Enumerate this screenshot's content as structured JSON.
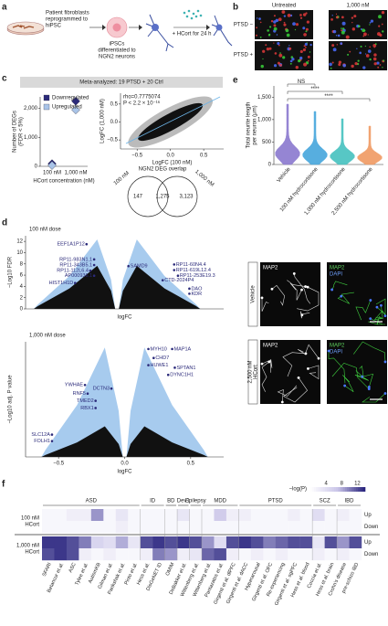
{
  "figure": {
    "panel_labels": [
      "a",
      "b",
      "c",
      "d",
      "e",
      "f"
    ]
  },
  "a": {
    "fibroblasts": [
      "Patient fibroblasts",
      "reprogrammed to",
      "hiPSC"
    ],
    "differentiation": [
      "iPSCs",
      "differentiated to",
      "NGN2 neurons"
    ],
    "treatment": "+ HCort for 24 h"
  },
  "b": {
    "columns": [
      "Untreated",
      "1,000 nM"
    ],
    "rows": [
      "PTSD −",
      "PTSD +"
    ]
  },
  "c": {
    "banner": "Meta-analyzed: 19 PTSD + 20 Ctrl"
  },
  "d": {
    "image_labels": [
      "MAP2",
      "MAP2",
      "DAPI"
    ],
    "image_rows": [
      [
        "Vehicle"
      ],
      [
        "2,500 nM",
        "HCort"
      ]
    ]
  },
  "chart_data": [
    {
      "type": "dot",
      "ylabel": [
        "Number of DEGs",
        "(FDR < 5%)"
      ],
      "xlabel": "HCort concentration (nM)",
      "categories": [
        "100 nM",
        "1,000 nM"
      ],
      "series": [
        {
          "name": "Downregulated",
          "color": "#2b2a7a",
          "values": [
            90,
            2250
          ]
        },
        {
          "name": "Upregulated",
          "color": "#a9c4e8",
          "values": [
            30,
            1950
          ]
        }
      ],
      "ylim": [
        0,
        2400
      ],
      "yticks": [
        0,
        {
          "value": 1000,
          "label": "1,000"
        },
        {
          "value": 2000,
          "label": "2,000"
        }
      ]
    },
    {
      "type": "scatter",
      "annotations": [
        "rho=0.7775074",
        "P < 2.2 × 10⁻¹⁶"
      ],
      "xlabel": "LogFC (100 nM)",
      "ylabel": "LogFC (1,000 nM)",
      "xlim": [
        -0.75,
        0.8
      ],
      "ylim": [
        -0.75,
        0.8
      ],
      "xticks": [
        {
          "value": -0.5,
          "label": "−0.5"
        },
        {
          "value": 0,
          "label": "0.0"
        },
        {
          "value": 0.5,
          "label": "0.5"
        }
      ],
      "yticks": [
        {
          "value": -0.5,
          "label": "−0.5"
        },
        {
          "value": 0,
          "label": "0.0"
        },
        {
          "value": 0.5,
          "label": "0.5"
        }
      ]
    },
    {
      "type": "venn",
      "title": "NGN2 DEG overlap",
      "sets": [
        "100 nM",
        "1,000 nM"
      ],
      "labels": [
        "147",
        "1,275",
        "3,123"
      ]
    },
    {
      "type": "volcano",
      "title": "100 nM dose",
      "ylabel": "−Log10 FDR",
      "xlabel": "logFC",
      "xlim": [
        -1.2,
        1.4
      ],
      "ylim": [
        0,
        13
      ],
      "yticks": [
        0,
        2,
        4,
        6,
        8,
        10,
        12
      ],
      "genes": [
        {
          "name": "EEF1A1P12",
          "x": -0.4,
          "y": 11.5
        },
        {
          "name": "RP11-983N1.1",
          "x": -0.3,
          "y": 8.8
        },
        {
          "name": "RP11-343B5.1",
          "x": -0.3,
          "y": 7.8
        },
        {
          "name": "SAMD9",
          "x": 0.15,
          "y": 7.6
        },
        {
          "name": "RP11-112L6.4",
          "x": -0.35,
          "y": 6.8
        },
        {
          "name": "AP000936.1",
          "x": -0.3,
          "y": 5.9
        },
        {
          "name": "HIST1H1D",
          "x": -0.55,
          "y": 4.6
        },
        {
          "name": "RP11-60N4.4",
          "x": 0.75,
          "y": 7.9
        },
        {
          "name": "RP11-619L12.4",
          "x": 0.75,
          "y": 6.9
        },
        {
          "name": "RP11-253E19.3",
          "x": 0.8,
          "y": 5.9
        },
        {
          "name": "CTD-2024P4",
          "x": 0.6,
          "y": 5.1
        },
        {
          "name": "DAO",
          "x": 0.95,
          "y": 3.6
        },
        {
          "name": "KDR",
          "x": 0.95,
          "y": 2.7
        }
      ]
    },
    {
      "type": "volcano",
      "title": "1,000 nM dose",
      "ylabel": "−Log10 adj. P value",
      "xlabel": "logFC",
      "xlim": [
        -0.75,
        0.75
      ],
      "ylim": [
        0,
        32
      ],
      "xticks": [
        {
          "value": -0.5,
          "label": "−0.5"
        },
        {
          "value": 0,
          "label": "0.0"
        },
        {
          "value": 0.5,
          "label": "0.5"
        }
      ],
      "genes": [
        {
          "name": "MYH10",
          "x": 0.18,
          "y": 30
        },
        {
          "name": "MAP1A",
          "x": 0.36,
          "y": 30
        },
        {
          "name": "CHD7",
          "x": 0.22,
          "y": 27.5
        },
        {
          "name": "HUWE1",
          "x": 0.18,
          "y": 25.5
        },
        {
          "name": "SPTAN1",
          "x": 0.38,
          "y": 24.8
        },
        {
          "name": "DYNC1H1",
          "x": 0.33,
          "y": 22.8
        },
        {
          "name": "YWHAE",
          "x": -0.3,
          "y": 20
        },
        {
          "name": "DCTN3",
          "x": -0.1,
          "y": 19
        },
        {
          "name": "RNF5",
          "x": -0.28,
          "y": 17.6
        },
        {
          "name": "TMED2",
          "x": -0.22,
          "y": 15.6
        },
        {
          "name": "RBX1",
          "x": -0.22,
          "y": 13.6
        },
        {
          "name": "SLC12A",
          "x": -0.55,
          "y": 6.2
        },
        {
          "name": "FOLH1",
          "x": -0.55,
          "y": 4.4
        }
      ]
    },
    {
      "type": "violin",
      "ylabel": [
        "Total neurite length",
        "per neuron (μm)"
      ],
      "categories": [
        "Vehicle",
        "100 nM hydrocortisone",
        "1,000 nM hydrocortisone",
        "2,500 nM hydrocortisone"
      ],
      "colors": [
        "#8a78cf",
        "#45a6dc",
        "#45c1bf",
        "#f09a62"
      ],
      "ylim": [
        0,
        1750
      ],
      "yticks": [
        0,
        500,
        {
          "value": 1000,
          "label": "1,000"
        },
        {
          "value": 1500,
          "label": "1,500"
        }
      ],
      "annotations": [
        "NS",
        "****",
        "****"
      ]
    },
    {
      "type": "heatmap",
      "legend_title": "−log(P)",
      "clim": [
        0,
        14
      ],
      "colorbar_ticks": [
        4,
        8,
        12
      ],
      "groups": [
        {
          "name": "ASD",
          "span": 8
        },
        {
          "name": "ID",
          "span": 2
        },
        {
          "name": "BD",
          "span": 1
        },
        {
          "name": "Dev1",
          "span": 1
        },
        {
          "name": "Epilepsy",
          "span": 1
        },
        {
          "name": "MDD",
          "span": 3
        },
        {
          "name": "PTSD",
          "span": 6
        },
        {
          "name": "SCZ",
          "span": 2
        },
        {
          "name": "IBD",
          "span": 2
        }
      ],
      "columns": [
        "SFARI",
        "Betancur et al.",
        "ASC",
        "Tylee et al.",
        "AutismKB",
        "Gilman et al.",
        "Parikshak et al.",
        "Pinto et al.",
        "Hess et al.",
        "DisGeNET ID",
        "OMIM",
        "DeBakker et al.",
        "Wittenberg et al.",
        "Wittenberg et al.",
        "Pantazatos et al.",
        "Girgenti et al. dlPFC",
        "Girgenti et al. dACC",
        "Hyperarousal",
        "Girgenti et al. OFC",
        "Re-experiencing",
        "Girgenti et al. sgPFC",
        "Hess et al. blood",
        "Coccia et al.",
        "Hess et al. brain",
        "Crohn's disease",
        "pre-schizo IBD"
      ],
      "row_groups": [
        [
          "100 nM",
          "HCort"
        ],
        [
          "1,000 nM",
          "HCort"
        ]
      ],
      "rows": [
        "Up",
        "Down",
        "Up",
        "Down"
      ],
      "values": [
        [
          1,
          1,
          2,
          2,
          9,
          1,
          3,
          1,
          1,
          1,
          1,
          3,
          1,
          1,
          6,
          2,
          2,
          1,
          1,
          1,
          2,
          1,
          4,
          1,
          2,
          1
        ],
        [
          1,
          1,
          1,
          1,
          1,
          1,
          2,
          1,
          1,
          1,
          1,
          1,
          1,
          1,
          1,
          1,
          1,
          1,
          1,
          1,
          1,
          1,
          1,
          1,
          1,
          1
        ],
        [
          13,
          13,
          12,
          10,
          5,
          4,
          8,
          3,
          12,
          13,
          12,
          13,
          12,
          9,
          4,
          12,
          13,
          12,
          10,
          11,
          12,
          12,
          3,
          12,
          9,
          12
        ],
        [
          12,
          13,
          12,
          2,
          1,
          2,
          1,
          1,
          2,
          10,
          9,
          2,
          3,
          11,
          12,
          2,
          1,
          2,
          1,
          2,
          1,
          1,
          2,
          1,
          2,
          1
        ]
      ]
    }
  ]
}
